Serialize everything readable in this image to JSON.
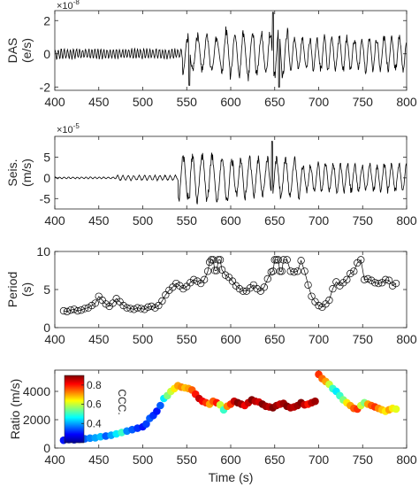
{
  "chart_data": [
    {
      "type": "line",
      "ylabel_lines": [
        "DAS",
        "(e/s)"
      ],
      "exponent_label": "×10",
      "exponent_power": "-8",
      "xlim": [
        400,
        800
      ],
      "ylim": [
        -2.2,
        2.6
      ],
      "xticks": [
        "400",
        "450",
        "500",
        "550",
        "600",
        "650",
        "700",
        "750",
        "800"
      ],
      "yticks": [
        "-2",
        "0",
        "2"
      ],
      "ytick_values": [
        -2,
        0,
        2
      ],
      "series": [
        {
          "color": "#000000",
          "segments": [
            {
              "x0": 400,
              "x1": 545,
              "amp": 0.35,
              "period": 3.5
            },
            {
              "x0": 545,
              "x1": 590,
              "amp": 1.3,
              "period": 11
            },
            {
              "x0": 590,
              "x1": 665,
              "amp": 1.7,
              "period": 10
            },
            {
              "x0": 665,
              "x1": 800,
              "amp": 1.2,
              "period": 8.5
            }
          ],
          "peaks": [
            {
              "x": 648,
              "y": 2.5
            },
            {
              "x": 655,
              "y": -2.0
            },
            {
              "x": 553,
              "y": -1.9
            }
          ]
        }
      ]
    },
    {
      "type": "line",
      "ylabel_lines": [
        "Seis.",
        "(m/s)"
      ],
      "exponent_label": "×10",
      "exponent_power": "-5",
      "xlim": [
        400,
        800
      ],
      "ylim": [
        -7.5,
        10
      ],
      "xticks": [
        "400",
        "450",
        "500",
        "550",
        "600",
        "650",
        "700",
        "750",
        "800"
      ],
      "yticks": [
        "-5",
        "0",
        "5"
      ],
      "ytick_values": [
        -5,
        0,
        5
      ],
      "series": [
        {
          "color": "#000000",
          "segments": [
            {
              "x0": 400,
              "x1": 470,
              "amp": 0.25,
              "period": 5
            },
            {
              "x0": 470,
              "x1": 540,
              "amp": 0.7,
              "period": 6
            },
            {
              "x0": 540,
              "x1": 600,
              "amp": 6.5,
              "period": 11
            },
            {
              "x0": 600,
              "x1": 680,
              "amp": 5.5,
              "period": 10
            },
            {
              "x0": 680,
              "x1": 800,
              "amp": 4.0,
              "period": 8.5
            }
          ],
          "peaks": [
            {
              "x": 647,
              "y": 8.8
            },
            {
              "x": 553,
              "y": -4.8
            }
          ]
        }
      ]
    },
    {
      "type": "scatter",
      "ylabel_lines": [
        "Period",
        "(s)"
      ],
      "xlim": [
        400,
        800
      ],
      "ylim": [
        0,
        10
      ],
      "xticks": [
        "400",
        "450",
        "500",
        "550",
        "600",
        "650",
        "700",
        "750",
        "800"
      ],
      "yticks": [
        "0",
        "5",
        "10"
      ],
      "ytick_values": [
        0,
        5,
        10
      ],
      "marker": "open-circle",
      "connect": true,
      "x": [
        410,
        414,
        418,
        422,
        426,
        430,
        434,
        438,
        442,
        446,
        450,
        454,
        458,
        462,
        466,
        470,
        474,
        478,
        482,
        486,
        490,
        494,
        498,
        502,
        506,
        510,
        514,
        518,
        522,
        526,
        530,
        534,
        538,
        542,
        546,
        550,
        554,
        558,
        562,
        566,
        570,
        574,
        576,
        578,
        580,
        582,
        584,
        586,
        588,
        590,
        594,
        598,
        602,
        606,
        610,
        614,
        618,
        622,
        626,
        630,
        634,
        638,
        642,
        646,
        648,
        650,
        652,
        654,
        656,
        658,
        660,
        664,
        668,
        672,
        676,
        680,
        684,
        688,
        692,
        696,
        700,
        704,
        708,
        712,
        716,
        720,
        724,
        728,
        732,
        736,
        740,
        744,
        748,
        752,
        756,
        760,
        764,
        768,
        772,
        776,
        780,
        784,
        788
      ],
      "y": [
        2.2,
        2.1,
        2.3,
        2.4,
        2.2,
        2.3,
        2.5,
        2.6,
        2.9,
        3.2,
        4.1,
        3.6,
        3.1,
        2.8,
        3.2,
        3.8,
        3.4,
        2.9,
        2.6,
        2.5,
        2.4,
        2.6,
        2.5,
        2.4,
        2.7,
        2.8,
        2.6,
        2.9,
        3.5,
        4.3,
        4.9,
        5.3,
        5.8,
        5.5,
        5.1,
        5.4,
        5.9,
        6.3,
        6.1,
        5.8,
        6.3,
        7.4,
        8.6,
        8.9,
        8.9,
        7.5,
        7.5,
        8.9,
        8.9,
        7.6,
        6.9,
        6.6,
        6.1,
        5.5,
        5.1,
        4.8,
        4.8,
        5.2,
        5.6,
        5.1,
        4.8,
        5.3,
        6.4,
        7.3,
        7.4,
        8.9,
        8.9,
        8.9,
        7.4,
        7.4,
        8.9,
        8.9,
        7.4,
        7.3,
        7.4,
        8.8,
        7.4,
        5.6,
        4.1,
        3.4,
        2.9,
        2.7,
        3.1,
        3.6,
        5.1,
        6.0,
        5.5,
        5.9,
        6.3,
        7.1,
        7.4,
        8.5,
        8.9,
        6.3,
        6.4,
        6.2,
        5.9,
        5.8,
        5.9,
        6.3,
        6.2,
        5.5,
        5.8
      ]
    },
    {
      "type": "scatter",
      "ylabel": "Ratio (m/s)",
      "xlabel": "Time (s)",
      "xlim": [
        400,
        800
      ],
      "ylim": [
        0,
        5500
      ],
      "xticks": [
        "400",
        "450",
        "500",
        "550",
        "600",
        "650",
        "700",
        "750",
        "800"
      ],
      "yticks": [
        "0",
        "2000",
        "4000"
      ],
      "ytick_values": [
        0,
        2000,
        4000
      ],
      "marker": "filled-circle",
      "colorbar": {
        "label": "CCC.",
        "ticks": [
          "0.4",
          "0.6",
          "0.8"
        ],
        "tick_values": [
          0.4,
          0.6,
          0.8
        ],
        "range": [
          0.2,
          0.9
        ],
        "colormap": "jet"
      },
      "x": [
        410,
        416,
        422,
        428,
        434,
        440,
        446,
        452,
        458,
        464,
        470,
        476,
        482,
        488,
        494,
        500,
        504,
        508,
        512,
        516,
        520,
        524,
        528,
        532,
        536,
        540,
        544,
        548,
        552,
        556,
        560,
        564,
        568,
        572,
        576,
        580,
        584,
        588,
        592,
        596,
        600,
        604,
        608,
        612,
        616,
        620,
        624,
        628,
        632,
        636,
        640,
        644,
        648,
        652,
        656,
        660,
        664,
        668,
        672,
        676,
        680,
        684,
        688,
        692,
        696,
        700,
        704,
        708,
        712,
        716,
        720,
        724,
        728,
        732,
        736,
        740,
        744,
        748,
        752,
        756,
        760,
        764,
        768,
        772,
        776,
        780,
        784,
        788
      ],
      "y": [
        550,
        600,
        580,
        620,
        650,
        700,
        720,
        800,
        850,
        900,
        1000,
        1100,
        1200,
        1300,
        1400,
        1500,
        1700,
        2100,
        2300,
        2600,
        3000,
        3500,
        3700,
        4000,
        4200,
        4400,
        4300,
        4250,
        4200,
        4100,
        3800,
        3500,
        3300,
        3200,
        3100,
        3300,
        3200,
        3050,
        2700,
        2950,
        3100,
        3300,
        3200,
        3100,
        3000,
        3200,
        3400,
        3300,
        3250,
        3100,
        2950,
        2900,
        2850,
        3000,
        3100,
        3150,
        2950,
        2850,
        2900,
        3000,
        3200,
        3050,
        3100,
        3200,
        3300,
        5200,
        4900,
        4700,
        4500,
        4200,
        4000,
        3700,
        3400,
        3200,
        3000,
        2800,
        2750,
        3000,
        3200,
        3100,
        3000,
        2900,
        2800,
        2700,
        2600,
        2700,
        2800,
        2750
      ],
      "c": [
        0.3,
        0.3,
        0.3,
        0.32,
        0.35,
        0.38,
        0.4,
        0.42,
        0.35,
        0.4,
        0.45,
        0.5,
        0.38,
        0.35,
        0.32,
        0.3,
        0.33,
        0.35,
        0.32,
        0.3,
        0.35,
        0.45,
        0.55,
        0.6,
        0.65,
        0.7,
        0.72,
        0.68,
        0.7,
        0.75,
        0.8,
        0.85,
        0.82,
        0.78,
        0.7,
        0.75,
        0.8,
        0.6,
        0.5,
        0.72,
        0.78,
        0.85,
        0.9,
        0.88,
        0.82,
        0.85,
        0.9,
        0.86,
        0.84,
        0.9,
        0.88,
        0.86,
        0.9,
        0.88,
        0.85,
        0.88,
        0.9,
        0.87,
        0.86,
        0.88,
        0.9,
        0.85,
        0.8,
        0.86,
        0.88,
        0.78,
        0.74,
        0.7,
        0.6,
        0.5,
        0.45,
        0.5,
        0.55,
        0.65,
        0.7,
        0.75,
        0.78,
        0.6,
        0.55,
        0.7,
        0.75,
        0.78,
        0.72,
        0.68,
        0.65,
        0.7,
        0.65,
        0.62
      ]
    }
  ]
}
